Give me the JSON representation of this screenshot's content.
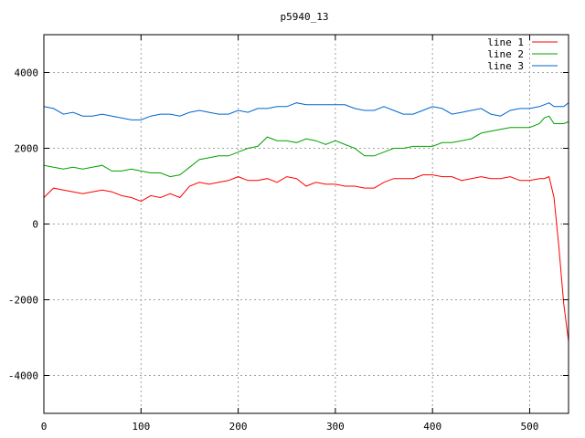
{
  "chart_data": {
    "type": "line",
    "title": "p5940_13",
    "xlabel": "",
    "ylabel": "",
    "xlim": [
      0,
      540
    ],
    "ylim": [
      -5000,
      5000
    ],
    "x_ticks": [
      0,
      100,
      200,
      300,
      400,
      500
    ],
    "y_ticks": [
      -4000,
      -2000,
      0,
      2000,
      4000
    ],
    "grid": true,
    "legend_position": "top-right",
    "series": [
      {
        "name": "line 1",
        "color": "#ff0000",
        "x": [
          0,
          10,
          20,
          30,
          40,
          50,
          60,
          70,
          80,
          90,
          100,
          110,
          120,
          130,
          140,
          150,
          160,
          170,
          180,
          190,
          200,
          210,
          220,
          230,
          240,
          250,
          260,
          270,
          280,
          290,
          300,
          310,
          320,
          330,
          340,
          350,
          360,
          370,
          380,
          390,
          400,
          410,
          420,
          430,
          440,
          450,
          460,
          470,
          480,
          490,
          500,
          510,
          515,
          520,
          525,
          530,
          535,
          540
        ],
        "y": [
          700,
          950,
          900,
          850,
          800,
          850,
          900,
          850,
          750,
          700,
          600,
          750,
          700,
          800,
          700,
          1000,
          1100,
          1050,
          1100,
          1150,
          1250,
          1150,
          1150,
          1200,
          1100,
          1250,
          1200,
          1000,
          1100,
          1050,
          1050,
          1000,
          1000,
          950,
          950,
          1100,
          1200,
          1200,
          1200,
          1300,
          1300,
          1250,
          1250,
          1150,
          1200,
          1250,
          1200,
          1200,
          1250,
          1150,
          1150,
          1200,
          1200,
          1250,
          700,
          -600,
          -2100,
          -3100
        ]
      },
      {
        "name": "line 2",
        "color": "#00a000",
        "x": [
          0,
          10,
          20,
          30,
          40,
          50,
          60,
          70,
          80,
          90,
          100,
          110,
          120,
          130,
          140,
          150,
          160,
          170,
          180,
          190,
          200,
          210,
          220,
          230,
          240,
          250,
          260,
          270,
          280,
          290,
          300,
          310,
          320,
          330,
          340,
          350,
          360,
          370,
          380,
          390,
          400,
          410,
          420,
          430,
          440,
          450,
          460,
          470,
          480,
          490,
          500,
          510,
          515,
          520,
          525,
          530,
          535,
          540
        ],
        "y": [
          1550,
          1500,
          1450,
          1500,
          1450,
          1500,
          1550,
          1400,
          1400,
          1450,
          1400,
          1350,
          1350,
          1250,
          1300,
          1500,
          1700,
          1750,
          1800,
          1800,
          1900,
          2000,
          2050,
          2300,
          2200,
          2200,
          2150,
          2250,
          2200,
          2100,
          2200,
          2100,
          2000,
          1800,
          1800,
          1900,
          2000,
          2000,
          2050,
          2050,
          2050,
          2150,
          2150,
          2200,
          2250,
          2400,
          2450,
          2500,
          2550,
          2550,
          2550,
          2650,
          2800,
          2850,
          2650,
          2650,
          2650,
          2700
        ]
      },
      {
        "name": "line 3",
        "color": "#0066cc",
        "x": [
          0,
          10,
          20,
          30,
          40,
          50,
          60,
          70,
          80,
          90,
          100,
          110,
          120,
          130,
          140,
          150,
          160,
          170,
          180,
          190,
          200,
          210,
          220,
          230,
          240,
          250,
          260,
          270,
          280,
          290,
          300,
          310,
          320,
          330,
          340,
          350,
          360,
          370,
          380,
          390,
          400,
          410,
          420,
          430,
          440,
          450,
          460,
          470,
          480,
          490,
          500,
          510,
          515,
          520,
          525,
          530,
          535,
          540
        ],
        "y": [
          3100,
          3050,
          2900,
          2950,
          2850,
          2850,
          2900,
          2850,
          2800,
          2750,
          2750,
          2850,
          2900,
          2900,
          2850,
          2950,
          3000,
          2950,
          2900,
          2900,
          3000,
          2950,
          3050,
          3050,
          3100,
          3100,
          3200,
          3150,
          3150,
          3150,
          3150,
          3150,
          3050,
          3000,
          3000,
          3100,
          3000,
          2900,
          2900,
          3000,
          3100,
          3050,
          2900,
          2950,
          3000,
          3050,
          2900,
          2850,
          3000,
          3050,
          3050,
          3100,
          3150,
          3200,
          3100,
          3100,
          3100,
          3200
        ]
      }
    ]
  }
}
